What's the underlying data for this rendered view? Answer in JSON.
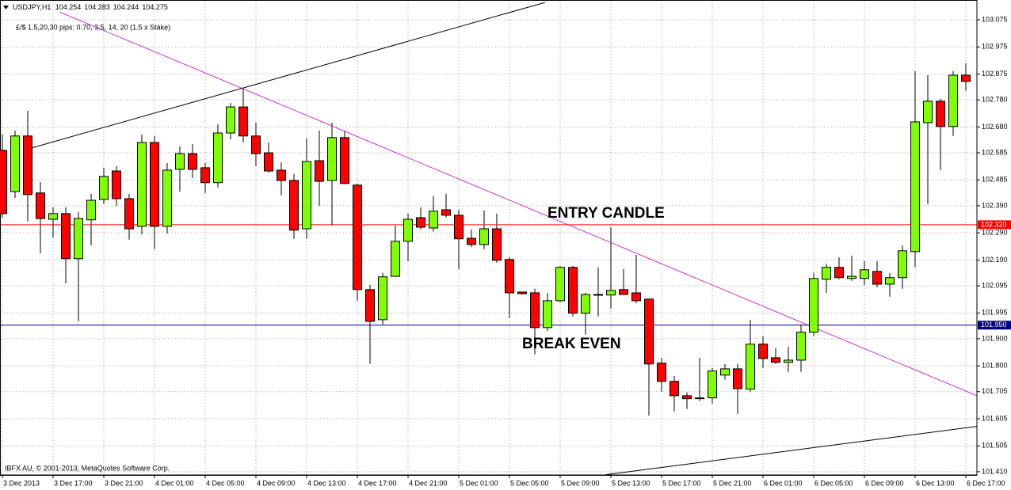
{
  "chart_data": {
    "type": "candlestick",
    "title": "USDJPY,H1",
    "header_values": [
      104.254,
      104.283,
      104.244,
      104.275
    ],
    "subtitle": "£/$ 1.5,20,30 pips: 0.70, 3.5, 14, 20 (1.5 x Stake)",
    "credit": "IBFX AU, © 2001-2013, MetaQuotes Software Corp.",
    "annotations": [
      {
        "text": "ENTRY CANDLE",
        "x": 43,
        "y": 102.36
      },
      {
        "text": "BREAK EVEN",
        "x": 41,
        "y": 101.88
      }
    ],
    "up_color": "#7fff00",
    "down_color": "#ff0000",
    "grid": true,
    "ylim": [
      101.398,
      103.148
    ],
    "yticks": [
      103.075,
      102.975,
      102.875,
      {
        "value": 102.78,
        "label": "102.780"
      },
      {
        "value": 102.68,
        "label": "102.680"
      },
      102.585,
      102.485,
      {
        "value": 102.39,
        "label": "102.390"
      },
      {
        "value": 102.29,
        "label": "102.290"
      },
      {
        "value": 102.19,
        "label": "102.190"
      },
      102.095,
      101.995,
      {
        "value": 101.9,
        "label": "101.900"
      },
      {
        "value": 101.8,
        "label": "101.800"
      },
      101.705,
      101.605,
      101.505,
      {
        "value": 101.41,
        "label": "101.410"
      }
    ],
    "categories": [
      "3 Dec 2013",
      null,
      null,
      null,
      "3 Dec 17:00",
      null,
      null,
      null,
      "3 Dec 21:00",
      null,
      null,
      null,
      "4 Dec 01:00",
      null,
      null,
      null,
      "4 Dec 05:00",
      null,
      null,
      null,
      "4 Dec 09:00",
      null,
      null,
      null,
      "4 Dec 13:00",
      null,
      null,
      null,
      "4 Dec 17:00",
      null,
      null,
      null,
      "4 Dec 21:00",
      null,
      null,
      null,
      "5 Dec 01:00",
      null,
      null,
      null,
      "5 Dec 05:00",
      null,
      null,
      null,
      "5 Dec 09:00",
      null,
      null,
      null,
      "5 Dec 13:00",
      null,
      null,
      null,
      "5 Dec 17:00",
      null,
      null,
      null,
      "5 Dec 21:00",
      null,
      null,
      null,
      "6 Dec 01:00",
      null,
      null,
      null,
      "6 Dec 05:00",
      null,
      null,
      null,
      "6 Dec 09:00",
      null,
      null,
      null,
      "6 Dec 13:00",
      null,
      null,
      null,
      "6 Dec 17:00"
    ],
    "open": [
      102.594,
      102.442,
      102.647,
      102.437,
      102.34,
      102.361,
      102.195,
      102.338,
      102.413,
      102.518,
      102.416,
      102.314,
      102.623,
      102.314,
      102.524,
      102.582,
      102.53,
      102.475,
      102.658,
      102.754,
      102.647,
      102.585,
      102.521,
      102.483,
      102.305,
      102.556,
      102.483,
      102.641,
      102.466,
      102.081,
      101.97,
      102.13,
      102.259,
      102.346,
      102.308,
      102.375,
      102.355,
      102.27,
      102.247,
      102.305,
      102.192,
      102.072,
      102.069,
      101.941,
      102.04,
      102.163,
      101.994,
      102.063,
      102.061,
      102.081,
      102.069,
      102.046,
      101.81,
      101.743,
      101.69,
      101.682,
      101.682,
      101.766,
      101.789,
      101.714,
      101.88,
      101.83,
      101.813,
      101.821,
      101.924,
      102.119,
      102.163,
      102.122,
      102.122,
      102.148,
      102.101,
      102.125,
      102.221,
      102.696,
      102.775,
      102.682,
      102.871
    ],
    "high": [
      102.652,
      102.667,
      102.74,
      102.477,
      102.384,
      102.384,
      102.367,
      102.434,
      102.53,
      102.536,
      102.434,
      102.652,
      102.647,
      102.547,
      102.609,
      102.617,
      102.547,
      102.69,
      102.769,
      102.821,
      102.696,
      102.623,
      102.55,
      102.507,
      102.638,
      102.667,
      102.696,
      102.667,
      102.472,
      102.098,
      102.142,
      102.317,
      102.361,
      102.384,
      102.425,
      102.434,
      102.375,
      102.303,
      102.373,
      102.361,
      102.2,
      102.072,
      102.084,
      102.069,
      102.168,
      102.168,
      102.069,
      102.163,
      102.311,
      102.157,
      102.209,
      102.046,
      101.83,
      101.763,
      101.702,
      101.83,
      101.792,
      101.807,
      101.807,
      101.97,
      101.909,
      101.865,
      101.871,
      101.953,
      102.142,
      102.177,
      102.2,
      102.206,
      102.186,
      102.186,
      102.142,
      102.244,
      102.886,
      102.871,
      102.784,
      102.886,
      102.915
    ],
    "low": [
      102.346,
      102.419,
      102.332,
      102.215,
      102.273,
      102.104,
      101.964,
      102.244,
      102.396,
      102.39,
      102.265,
      102.285,
      102.23,
      102.288,
      102.442,
      102.492,
      102.437,
      102.457,
      102.635,
      102.623,
      102.536,
      102.512,
      102.428,
      102.268,
      102.268,
      102.39,
      102.317,
      102.469,
      102.04,
      101.807,
      101.953,
      102.128,
      102.186,
      102.303,
      102.294,
      102.346,
      102.157,
      102.238,
      102.23,
      102.18,
      101.976,
      102.063,
      101.842,
      101.929,
      102.034,
      101.982,
      101.915,
      101.982,
      102.011,
      102.063,
      102.031,
      101.617,
      101.705,
      101.632,
      101.641,
      101.67,
      101.661,
      101.749,
      101.623,
      101.705,
      101.792,
      101.807,
      101.778,
      101.778,
      101.909,
      102.069,
      102.119,
      102.113,
      102.098,
      102.09,
      102.055,
      102.084,
      102.163,
      102.396,
      102.521,
      102.647,
      102.813
    ],
    "close": [
      102.361,
      102.647,
      102.431,
      102.343,
      102.361,
      102.195,
      102.343,
      102.41,
      102.498,
      102.416,
      102.305,
      102.623,
      102.314,
      102.521,
      102.582,
      102.524,
      102.475,
      102.658,
      102.754,
      102.647,
      102.582,
      102.518,
      102.483,
      102.3,
      102.553,
      102.48,
      102.641,
      102.472,
      102.081,
      101.964,
      102.128,
      102.259,
      102.34,
      102.311,
      102.37,
      102.355,
      102.268,
      102.247,
      102.305,
      102.189,
      102.069,
      102.066,
      101.941,
      102.04,
      102.163,
      101.994,
      102.063,
      102.063,
      102.078,
      102.063,
      102.04,
      101.807,
      101.743,
      101.69,
      101.679,
      101.682,
      101.781,
      101.789,
      101.716,
      101.88,
      101.827,
      101.813,
      101.821,
      101.924,
      102.122,
      102.163,
      102.125,
      102.13,
      102.154,
      102.101,
      102.125,
      102.224,
      102.699,
      102.775,
      102.682,
      102.871,
      102.848
    ],
    "hlines": [
      {
        "value": 102.32,
        "label": "102.320",
        "color": "#ff0000"
      },
      {
        "value": 101.95,
        "label": "101.950",
        "color": "#000080"
      }
    ],
    "trendlines": [
      {
        "color": "#cc33cc",
        "x": [
          4.5,
          76.875
        ],
        "y": [
          103.104,
          101.69
        ]
      },
      {
        "color": "#000000",
        "x": [
          2.31,
          42.8
        ],
        "y": [
          102.603,
          103.139
        ]
      },
      {
        "color": "#000000",
        "x": [
          47.6,
          76.875
        ],
        "y": [
          101.399,
          101.577
        ]
      }
    ]
  }
}
